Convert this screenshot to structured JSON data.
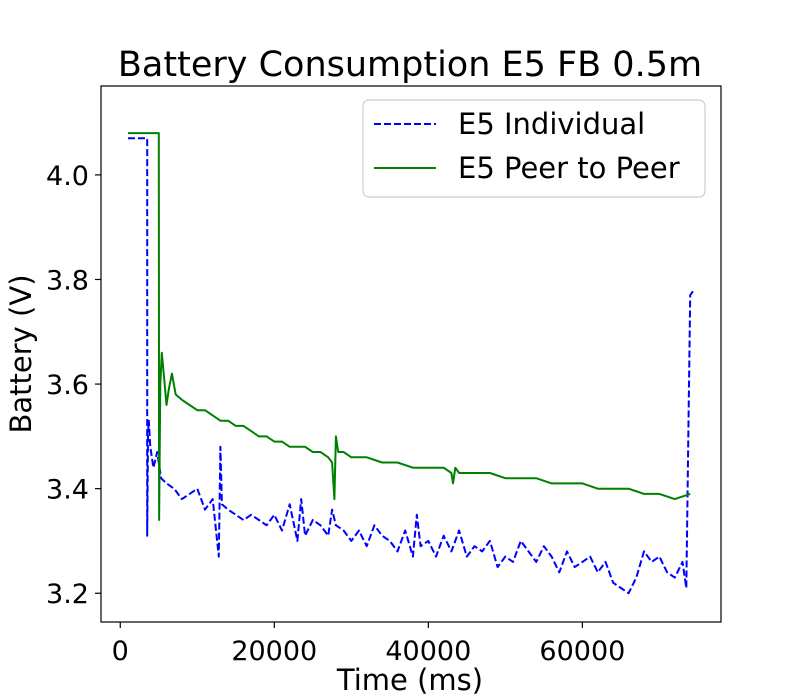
{
  "chart_data": {
    "type": "line",
    "title": "Battery Consumption E5 FB 0.5m",
    "xlabel": "Time (ms)",
    "ylabel": "Battery (V)",
    "xlim": [
      -2500,
      78000
    ],
    "ylim": [
      3.145,
      4.17
    ],
    "xticks": [
      0,
      20000,
      40000,
      60000
    ],
    "xtick_labels": [
      "0",
      "20000",
      "40000",
      "60000"
    ],
    "yticks": [
      3.2,
      3.4,
      3.6,
      3.8,
      4.0
    ],
    "ytick_labels": [
      "3.2",
      "3.4",
      "3.6",
      "3.8",
      "4.0"
    ],
    "grid": false,
    "legend_position": "top-right",
    "series": [
      {
        "name": "E5 Individual",
        "color": "#0000ff",
        "style": "dashed",
        "x": [
          1000,
          3500,
          3500,
          3600,
          3700,
          3900,
          4300,
          4800,
          5300,
          6000,
          7000,
          8000,
          9000,
          10000,
          11000,
          12000,
          12800,
          13000,
          13200,
          14000,
          15000,
          16000,
          17000,
          18000,
          19000,
          20000,
          21000,
          22000,
          23000,
          23500,
          24000,
          25000,
          26000,
          27000,
          27500,
          28000,
          29000,
          30000,
          31000,
          32000,
          33000,
          34000,
          35000,
          36000,
          37000,
          38000,
          38500,
          39000,
          40000,
          41000,
          42000,
          43000,
          44000,
          45000,
          46000,
          47000,
          48000,
          49000,
          50000,
          51000,
          52000,
          53000,
          54000,
          55000,
          56000,
          57000,
          58000,
          59000,
          60000,
          61000,
          62000,
          63000,
          64000,
          65000,
          66000,
          67000,
          68000,
          69000,
          70000,
          71000,
          72000,
          73000,
          73500,
          74000,
          74500
        ],
        "y": [
          4.07,
          4.07,
          3.31,
          3.5,
          3.53,
          3.48,
          3.44,
          3.47,
          3.42,
          3.41,
          3.4,
          3.38,
          3.39,
          3.4,
          3.36,
          3.38,
          3.27,
          3.48,
          3.37,
          3.36,
          3.35,
          3.34,
          3.35,
          3.34,
          3.33,
          3.35,
          3.32,
          3.37,
          3.3,
          3.38,
          3.31,
          3.34,
          3.33,
          3.31,
          3.36,
          3.33,
          3.32,
          3.3,
          3.32,
          3.29,
          3.33,
          3.31,
          3.3,
          3.28,
          3.32,
          3.27,
          3.35,
          3.29,
          3.3,
          3.27,
          3.31,
          3.28,
          3.32,
          3.27,
          3.29,
          3.28,
          3.3,
          3.25,
          3.27,
          3.26,
          3.3,
          3.28,
          3.26,
          3.29,
          3.27,
          3.24,
          3.28,
          3.25,
          3.26,
          3.27,
          3.24,
          3.26,
          3.22,
          3.21,
          3.2,
          3.23,
          3.28,
          3.26,
          3.27,
          3.24,
          3.23,
          3.26,
          3.21,
          3.77,
          3.78
        ]
      },
      {
        "name": "E5 Peer to Peer",
        "color": "#008000",
        "style": "solid",
        "x": [
          1000,
          5000,
          5050,
          5200,
          5400,
          5700,
          6000,
          6300,
          6700,
          7200,
          8000,
          9000,
          10000,
          11000,
          12000,
          13000,
          14000,
          15000,
          16000,
          17000,
          18000,
          19000,
          20000,
          21000,
          22000,
          23000,
          24000,
          25000,
          26000,
          27000,
          27500,
          27800,
          28000,
          28300,
          29000,
          30000,
          32000,
          34000,
          36000,
          38000,
          40000,
          42000,
          43000,
          43200,
          43500,
          44000,
          46000,
          48000,
          50000,
          52000,
          54000,
          56000,
          58000,
          60000,
          62000,
          64000,
          66000,
          68000,
          70000,
          72000,
          74000
        ],
        "y": [
          4.08,
          4.08,
          3.34,
          3.6,
          3.66,
          3.61,
          3.56,
          3.59,
          3.62,
          3.58,
          3.57,
          3.56,
          3.55,
          3.55,
          3.54,
          3.53,
          3.53,
          3.52,
          3.52,
          3.51,
          3.5,
          3.5,
          3.49,
          3.49,
          3.48,
          3.48,
          3.48,
          3.47,
          3.47,
          3.46,
          3.45,
          3.38,
          3.5,
          3.47,
          3.47,
          3.46,
          3.46,
          3.45,
          3.45,
          3.44,
          3.44,
          3.44,
          3.43,
          3.41,
          3.44,
          3.43,
          3.43,
          3.43,
          3.42,
          3.42,
          3.42,
          3.41,
          3.41,
          3.41,
          3.4,
          3.4,
          3.4,
          3.39,
          3.39,
          3.38,
          3.39
        ]
      }
    ]
  }
}
